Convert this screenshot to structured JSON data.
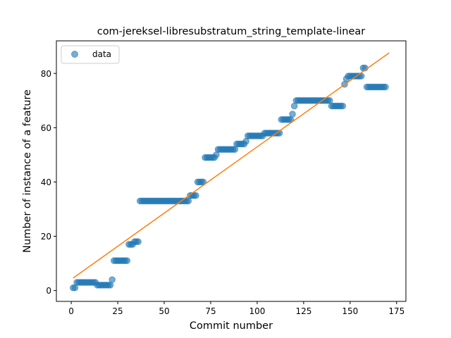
{
  "chart_data": {
    "type": "scatter",
    "title": "com-jereksel-libresubstratum_string_template-linear",
    "xlabel": "Commit number",
    "ylabel": "Number of instance of a feature",
    "xlim": [
      -8,
      180
    ],
    "ylim": [
      -4,
      92
    ],
    "xticks": [
      0,
      25,
      50,
      75,
      100,
      125,
      150,
      175
    ],
    "yticks": [
      0,
      20,
      40,
      60,
      80
    ],
    "legend": {
      "placement": "top-left",
      "entries": [
        "data"
      ]
    },
    "grid": false,
    "colors": {
      "data": "#1f77b4",
      "fit": "#ff7f0e"
    },
    "series": [
      {
        "name": "data",
        "kind": "scatter",
        "points": [
          [
            1,
            1
          ],
          [
            2,
            1
          ],
          [
            3,
            3
          ],
          [
            4,
            3
          ],
          [
            5,
            3
          ],
          [
            6,
            3
          ],
          [
            7,
            3
          ],
          [
            8,
            3
          ],
          [
            9,
            3
          ],
          [
            10,
            3
          ],
          [
            11,
            3
          ],
          [
            12,
            3
          ],
          [
            13,
            3
          ],
          [
            14,
            2
          ],
          [
            15,
            2
          ],
          [
            16,
            2
          ],
          [
            17,
            2
          ],
          [
            18,
            2
          ],
          [
            19,
            2
          ],
          [
            20,
            2
          ],
          [
            21,
            2
          ],
          [
            22,
            4
          ],
          [
            23,
            11
          ],
          [
            24,
            11
          ],
          [
            25,
            11
          ],
          [
            26,
            11
          ],
          [
            27,
            11
          ],
          [
            28,
            11
          ],
          [
            29,
            11
          ],
          [
            30,
            11
          ],
          [
            31,
            17
          ],
          [
            32,
            17
          ],
          [
            33,
            17
          ],
          [
            34,
            18
          ],
          [
            35,
            18
          ],
          [
            36,
            18
          ],
          [
            37,
            33
          ],
          [
            38,
            33
          ],
          [
            39,
            33
          ],
          [
            40,
            33
          ],
          [
            41,
            33
          ],
          [
            42,
            33
          ],
          [
            43,
            33
          ],
          [
            44,
            33
          ],
          [
            45,
            33
          ],
          [
            46,
            33
          ],
          [
            47,
            33
          ],
          [
            48,
            33
          ],
          [
            49,
            33
          ],
          [
            50,
            33
          ],
          [
            51,
            33
          ],
          [
            52,
            33
          ],
          [
            53,
            33
          ],
          [
            54,
            33
          ],
          [
            55,
            33
          ],
          [
            56,
            33
          ],
          [
            57,
            33
          ],
          [
            58,
            33
          ],
          [
            59,
            33
          ],
          [
            60,
            33
          ],
          [
            61,
            33
          ],
          [
            62,
            33
          ],
          [
            63,
            33
          ],
          [
            64,
            35
          ],
          [
            65,
            35
          ],
          [
            66,
            35
          ],
          [
            67,
            35
          ],
          [
            68,
            40
          ],
          [
            69,
            40
          ],
          [
            70,
            40
          ],
          [
            71,
            40
          ],
          [
            72,
            49
          ],
          [
            73,
            49
          ],
          [
            74,
            49
          ],
          [
            75,
            49
          ],
          [
            76,
            49
          ],
          [
            77,
            49
          ],
          [
            78,
            50
          ],
          [
            79,
            52
          ],
          [
            80,
            52
          ],
          [
            81,
            52
          ],
          [
            82,
            52
          ],
          [
            83,
            52
          ],
          [
            84,
            52
          ],
          [
            85,
            52
          ],
          [
            86,
            52
          ],
          [
            87,
            52
          ],
          [
            88,
            52
          ],
          [
            89,
            54
          ],
          [
            90,
            54
          ],
          [
            91,
            54
          ],
          [
            92,
            54
          ],
          [
            93,
            54
          ],
          [
            94,
            55
          ],
          [
            95,
            57
          ],
          [
            96,
            57
          ],
          [
            97,
            57
          ],
          [
            98,
            57
          ],
          [
            99,
            57
          ],
          [
            100,
            57
          ],
          [
            101,
            57
          ],
          [
            102,
            57
          ],
          [
            103,
            57
          ],
          [
            104,
            58
          ],
          [
            105,
            58
          ],
          [
            106,
            58
          ],
          [
            107,
            58
          ],
          [
            108,
            58
          ],
          [
            109,
            58
          ],
          [
            110,
            58
          ],
          [
            111,
            58
          ],
          [
            112,
            58
          ],
          [
            113,
            63
          ],
          [
            114,
            63
          ],
          [
            115,
            63
          ],
          [
            116,
            63
          ],
          [
            117,
            63
          ],
          [
            118,
            63
          ],
          [
            119,
            65
          ],
          [
            120,
            68
          ],
          [
            121,
            70
          ],
          [
            122,
            70
          ],
          [
            123,
            70
          ],
          [
            124,
            70
          ],
          [
            125,
            70
          ],
          [
            126,
            70
          ],
          [
            127,
            70
          ],
          [
            128,
            70
          ],
          [
            129,
            70
          ],
          [
            130,
            70
          ],
          [
            131,
            70
          ],
          [
            132,
            70
          ],
          [
            133,
            70
          ],
          [
            134,
            70
          ],
          [
            135,
            70
          ],
          [
            136,
            70
          ],
          [
            137,
            70
          ],
          [
            138,
            70
          ],
          [
            139,
            70
          ],
          [
            140,
            68
          ],
          [
            141,
            68
          ],
          [
            142,
            68
          ],
          [
            143,
            68
          ],
          [
            144,
            68
          ],
          [
            145,
            68
          ],
          [
            146,
            68
          ],
          [
            147,
            76
          ],
          [
            148,
            78
          ],
          [
            149,
            79
          ],
          [
            150,
            79
          ],
          [
            151,
            79
          ],
          [
            152,
            79
          ],
          [
            153,
            79
          ],
          [
            154,
            79
          ],
          [
            155,
            79
          ],
          [
            156,
            79
          ],
          [
            157,
            82
          ],
          [
            158,
            82
          ],
          [
            159,
            75
          ],
          [
            160,
            75
          ],
          [
            161,
            75
          ],
          [
            162,
            75
          ],
          [
            163,
            75
          ],
          [
            164,
            75
          ],
          [
            165,
            75
          ],
          [
            166,
            75
          ],
          [
            167,
            75
          ],
          [
            168,
            75
          ],
          [
            169,
            75
          ]
        ]
      },
      {
        "kind": "line",
        "points": [
          [
            1,
            4.6
          ],
          [
            171,
            87.6
          ]
        ]
      }
    ]
  }
}
